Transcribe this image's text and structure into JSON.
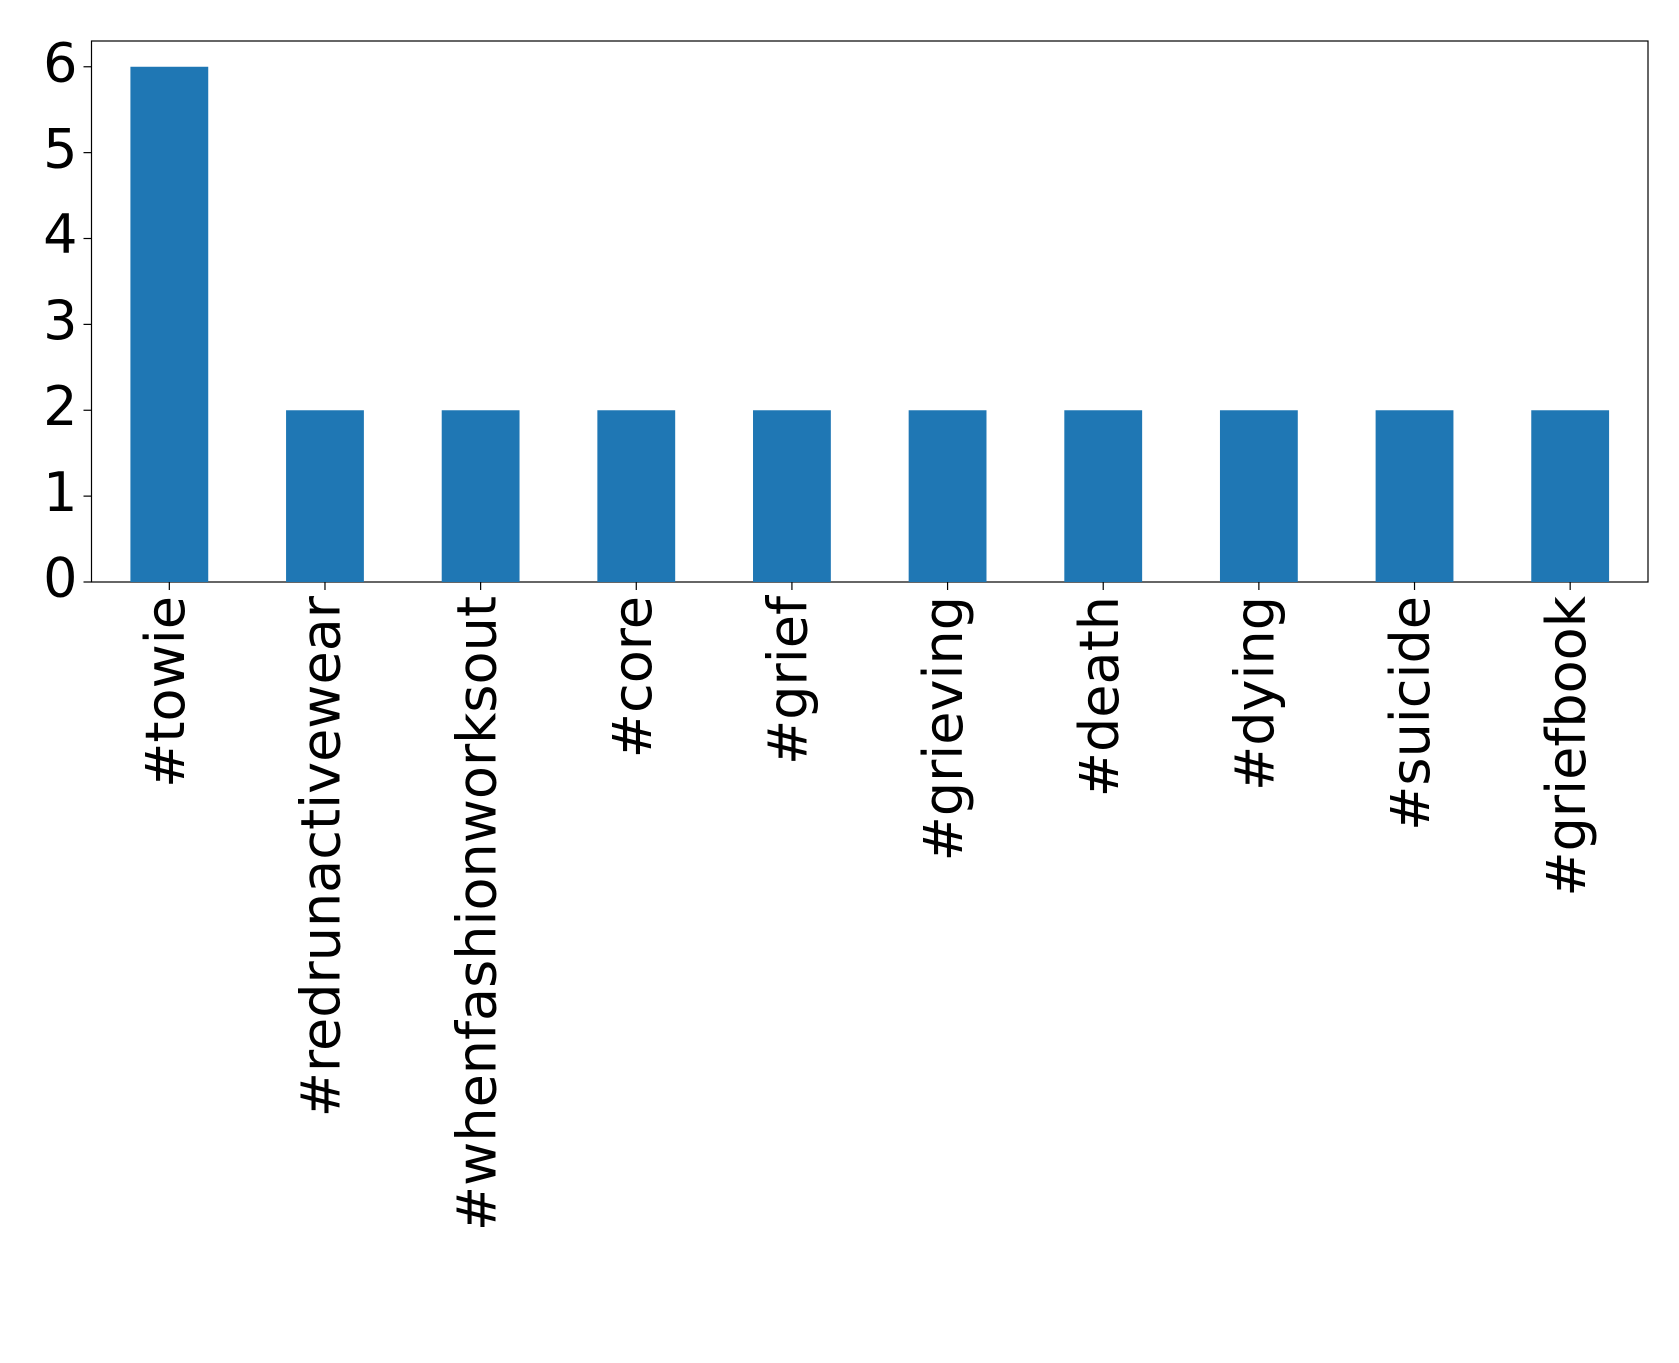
{
  "chart_data": {
    "type": "bar",
    "categories": [
      "#towie",
      "#redrunactivewear",
      "#whenfashionworksout",
      "#core",
      "#grief",
      "#grieving",
      "#death",
      "#dying",
      "#suicide",
      "#griefbook"
    ],
    "values": [
      6,
      2,
      2,
      2,
      2,
      2,
      2,
      2,
      2,
      2
    ],
    "color": "#1f77b4",
    "ylim": [
      0,
      6.3
    ],
    "yticks": [
      0,
      1,
      2,
      3,
      4,
      5,
      6
    ],
    "grid": false
  }
}
